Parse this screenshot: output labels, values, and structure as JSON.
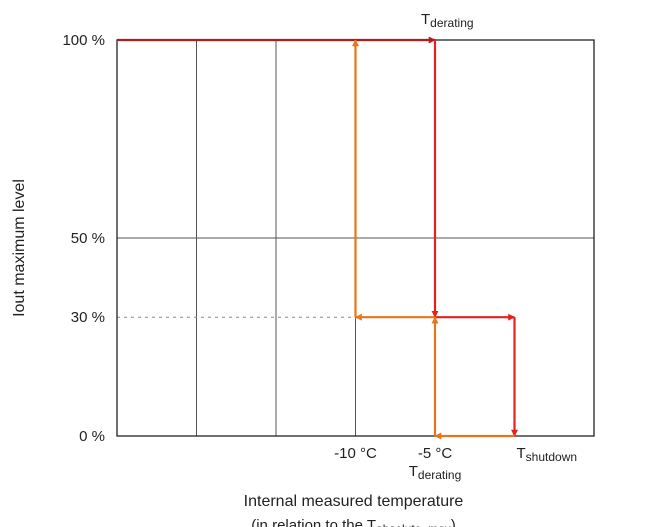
{
  "chart_data": {
    "type": "line",
    "title": "",
    "xlabel": "Internal measured temperature",
    "xlabel_line2_prefix": "(in relation to the T",
    "xlabel_line2_sub": "absolute_max",
    "xlabel_line2_suffix": ")",
    "ylabel": "Iout maximum level",
    "x_unit": "°C",
    "xlim": [
      -25,
      5
    ],
    "ylim": [
      0,
      100
    ],
    "y_ticks": [
      {
        "value": 0,
        "label": "0 %"
      },
      {
        "value": 30,
        "label": "30 %"
      },
      {
        "value": 50,
        "label": "50 %"
      },
      {
        "value": 100,
        "label": "100 %"
      }
    ],
    "x_tick_labels": [
      {
        "value": -10,
        "label": "-10 °C"
      },
      {
        "value": -5,
        "label": "-5 °C"
      }
    ],
    "vertical_gridlines_x": [
      -20,
      -15,
      -10
    ],
    "horizontal_gridline_y": 50,
    "dotted_reference_y": 30,
    "annotations": [
      {
        "id": "t-derating-top",
        "base": "T",
        "sub": "derating",
        "x": -5,
        "position": "above-plot"
      },
      {
        "id": "t-derating-bottom",
        "base": "T",
        "sub": "derating",
        "x": -5,
        "position": "below-axis"
      },
      {
        "id": "t-shutdown",
        "base": "T",
        "sub": "shutdown",
        "x": 0,
        "position": "right-of-axis"
      }
    ],
    "series": [
      {
        "role": "heating-to-derating",
        "color": "#b01c1c",
        "points": [
          [
            -25,
            100
          ],
          [
            -5,
            100
          ]
        ]
      },
      {
        "role": "derating-drop",
        "color": "#e62020",
        "points": [
          [
            -5,
            100
          ],
          [
            -5,
            30
          ]
        ]
      },
      {
        "role": "continue-heating",
        "color": "#e62020",
        "points": [
          [
            -5,
            30
          ],
          [
            0,
            30
          ]
        ]
      },
      {
        "role": "shutdown-drop",
        "color": "#e62020",
        "points": [
          [
            0,
            30
          ],
          [
            0,
            0
          ]
        ]
      },
      {
        "role": "cooling-from-shutdown",
        "color": "#e8751a",
        "points": [
          [
            0,
            0
          ],
          [
            -5,
            0
          ]
        ]
      },
      {
        "role": "recovery-to-30",
        "color": "#e8751a",
        "points": [
          [
            -5,
            0
          ],
          [
            -5,
            30
          ]
        ]
      },
      {
        "role": "cooling-at-30",
        "color": "#e8751a",
        "points": [
          [
            -5,
            30
          ],
          [
            -10,
            30
          ]
        ]
      },
      {
        "role": "recovery-to-100",
        "color": "#e8751a",
        "points": [
          [
            -10,
            30
          ],
          [
            -10,
            100
          ]
        ]
      }
    ],
    "colors": {
      "frame": "#222222",
      "grid": "#555555",
      "dotted": "#888888"
    }
  }
}
